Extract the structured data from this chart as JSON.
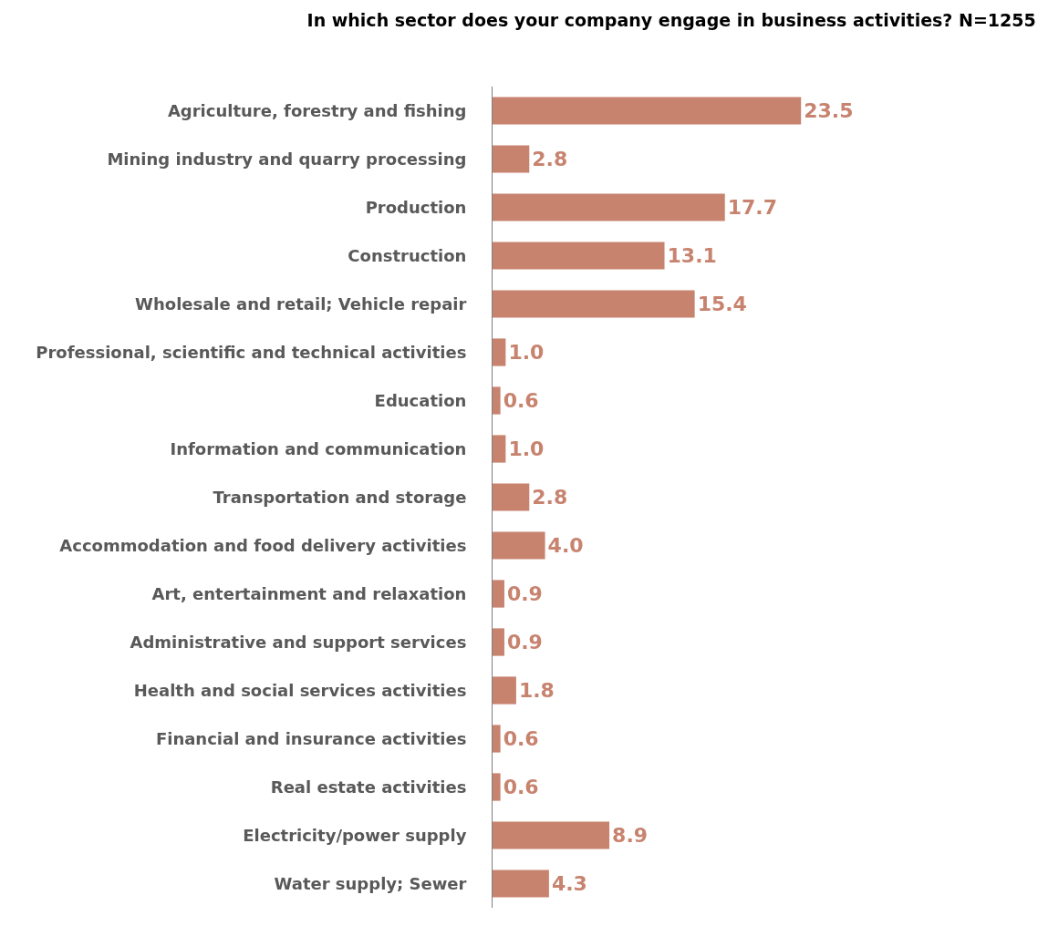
{
  "chart_data": {
    "type": "bar",
    "orientation": "horizontal",
    "title": "In which sector does your company engage in business activities? N=1255",
    "categories": [
      "Agriculture, forestry and fishing",
      "Mining industry and quarry processing",
      "Production",
      "Construction",
      "Wholesale and retail; Vehicle repair",
      "Professional, scientific and technical activities",
      "Education",
      "Information and communication",
      "Transportation and storage",
      "Accommodation and food delivery activities",
      "Art, entertainment and relaxation",
      "Administrative and support services",
      "Health and social services activities",
      "Financial and insurance activities",
      "Real estate activities",
      "Electricity/power supply",
      "Water supply; Sewer"
    ],
    "values": [
      23.5,
      2.8,
      17.7,
      13.1,
      15.4,
      1.0,
      0.6,
      1.0,
      2.8,
      4.0,
      0.9,
      0.9,
      1.8,
      0.6,
      0.6,
      8.9,
      4.3
    ],
    "value_labels": [
      "23.5",
      "2.8",
      "17.7",
      "13.1",
      "15.4",
      "1.0",
      "0.6",
      "1.0",
      "2.8",
      "4.0",
      "0.9",
      "0.9",
      "1.8",
      "0.6",
      "0.6",
      "8.9",
      "4.3"
    ],
    "color": "#c8836f",
    "grid": false,
    "legend": false
  }
}
